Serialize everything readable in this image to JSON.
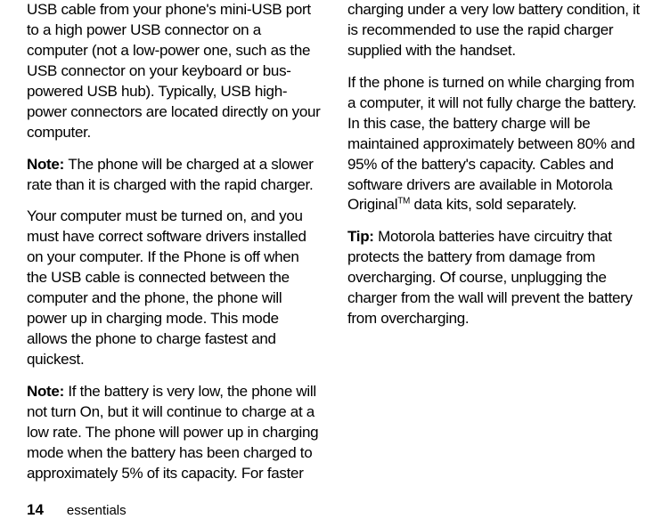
{
  "left": {
    "p1": "USB cable from your phone's mini-USB port to a high power USB connector on a computer (not a low-power one, such as the USB connector on your keyboard or bus-powered USB hub). Typically, USB high-power connectors are located directly on your computer.",
    "note1_label": "Note: ",
    "note1_text": "The phone will be charged at a slower rate than it is charged with the rapid charger.",
    "p2": "Your computer must be turned on, and you must have correct software drivers installed on your computer. If the Phone is off when the USB cable is connected between the computer and the phone, the phone will power up in charging mode. This mode allows the phone to charge fastest and quickest.",
    "note2_label": "Note: ",
    "note2_text": "If the battery is very low, the phone will not turn On, but it will continue to charge at a low rate. The phone will power up in charging mode when the battery has been charged to approximately 5% of its capacity. For faster"
  },
  "right": {
    "p1": "charging under a very low battery condition, it is recommended to use the rapid charger supplied with the handset.",
    "p2": "If the phone is turned on while charging from a computer, it will not fully charge the battery. In this case, the battery charge will be maintained approximately between 80% and 95% of the battery's capacity. Cables and software drivers are available in Motorola Original",
    "tm": "TM",
    "p2_after": " data kits, sold separately.",
    "tip_label": "Tip: ",
    "tip_text": "Motorola batteries have circuitry that protects the battery from damage from overcharging. Of course, unplugging the charger from the wall will prevent the battery from overcharging."
  },
  "footer": {
    "page": "14",
    "section": "essentials"
  }
}
